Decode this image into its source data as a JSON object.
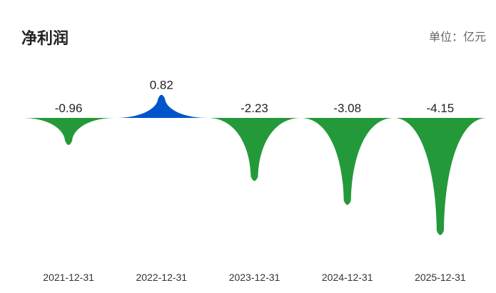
{
  "header": {
    "title": "净利润",
    "unit": "单位：亿元"
  },
  "colors": {
    "negative": "#23993A",
    "positive": "#0055CC"
  },
  "chart_data": {
    "type": "bar",
    "categories": [
      "2021-12-31",
      "2022-12-31",
      "2023-12-31",
      "2024-12-31",
      "2025-12-31"
    ],
    "values": [
      -0.96,
      0.82,
      -2.23,
      -3.08,
      -4.15
    ],
    "value_labels": [
      "-0.96",
      "0.82",
      "-2.23",
      "-3.08",
      "-4.15"
    ],
    "title": "净利润",
    "ylabel": "单位：亿元",
    "grid": false,
    "legend": "none"
  }
}
